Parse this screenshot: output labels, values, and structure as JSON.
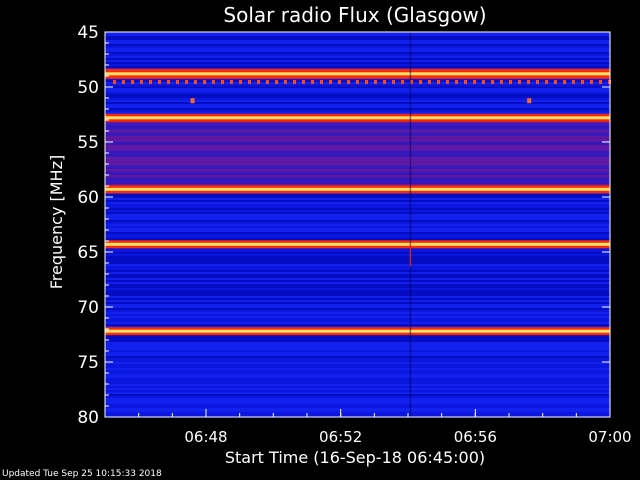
{
  "chart_data": {
    "type": "heatmap",
    "title": "Solar radio Flux (Glasgow)",
    "xlabel": "Start Time (16-Sep-18 06:45:00)",
    "ylabel": "Frequency [MHz]",
    "x_range": [
      "06:45",
      "07:00"
    ],
    "ylim": [
      45,
      80
    ],
    "y_inverted": true,
    "y_ticks": [
      "45",
      "50",
      "55",
      "60",
      "65",
      "70",
      "75",
      "80"
    ],
    "x_ticks": [
      "06:48",
      "06:52",
      "06:56",
      "07:00"
    ],
    "colors": {
      "background": "#000000",
      "low": "#0a14d8",
      "mid": "#6a1a9a",
      "high": "#ff2a00",
      "peak": "#ffe06a"
    },
    "bright_bands_mhz": [
      48.8,
      52.8,
      59.3,
      64.3,
      72.2
    ],
    "banded_regions_mhz": [
      [
        52.8,
        59.3
      ]
    ]
  },
  "footer": {
    "text": "Updated Tue Sep 25 10:15:33 2018"
  }
}
